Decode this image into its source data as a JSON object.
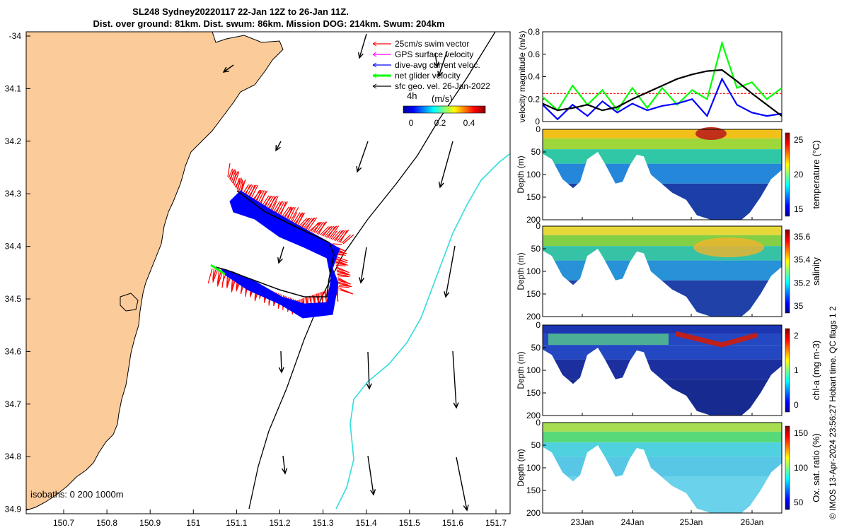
{
  "titles": {
    "line1": "SL248 Sydney20220117 22-Jan 12Z to 26-Jan 11Z.",
    "line2": "Dist. over ground: 81km. Dist. swum: 86km. Mission DOG: 214km. Swum: 204km"
  },
  "credit": "© IMOS 13-Apr-2024 23:56:27 Hobart time. QC flags 1  2",
  "map": {
    "xticks": [
      "150.7",
      "150.8",
      "150.9",
      "151",
      "151.1",
      "151.2",
      "151.3",
      "151.4",
      "151.5",
      "151.6",
      "151.7"
    ],
    "yticks": [
      "-34",
      "34.1",
      "34.2",
      "34.3",
      "34.4",
      "34.5",
      "34.6",
      "34.7",
      "34.8",
      "34.9"
    ],
    "legend": [
      {
        "label": "25cm/s swim vector",
        "color": "#ff0000"
      },
      {
        "label": "GPS surface velocity",
        "color": "#ff00ff"
      },
      {
        "label": "dive-avg current veloc.",
        "color": "#0000ff"
      },
      {
        "label": "net glider velocity",
        "color": "#00ff00"
      },
      {
        "label": "sfc geo. vel. 26-Jan-2022",
        "color": "#000000"
      }
    ],
    "colorbar": {
      "label": "(m/s)",
      "ticks": [
        "0",
        "0.2",
        "0.4"
      ],
      "note": "4h"
    },
    "isobaths_label": "isobaths: 0   200  1000m",
    "colors": {
      "land": "#fbcb99",
      "isobath200": "#000000",
      "isobath1000": "#33dddd",
      "swim": "#ff0000",
      "current": "#0000ff"
    }
  },
  "chart_data": [
    {
      "type": "line",
      "title": "",
      "ylabel": "velocity magnitude (m/s)",
      "ylim": [
        0,
        0.8
      ],
      "yticks": [
        "0",
        "0.2",
        "0.4",
        "0.6",
        "0.8"
      ],
      "x": [
        0,
        0.25,
        0.5,
        0.75,
        1,
        1.25,
        1.5,
        1.75,
        2,
        2.25,
        2.5,
        2.75,
        3,
        3.25,
        3.5,
        3.75,
        4
      ],
      "series": [
        {
          "name": "swim",
          "color": "#ff0000",
          "values": [
            0.25,
            0.25,
            0.25,
            0.25,
            0.25,
            0.25,
            0.25,
            0.25,
            0.25,
            0.25,
            0.25,
            0.25,
            0.25,
            0.25,
            0.25,
            0.25,
            0.25
          ]
        },
        {
          "name": "net glider",
          "color": "#00ff00",
          "values": [
            0.22,
            0.1,
            0.32,
            0.15,
            0.28,
            0.1,
            0.3,
            0.12,
            0.3,
            0.15,
            0.28,
            0.2,
            0.7,
            0.3,
            0.35,
            0.2,
            0.3
          ]
        },
        {
          "name": "dive-avg current",
          "color": "#0000ff",
          "values": [
            0.15,
            0.02,
            0.15,
            0.05,
            0.18,
            0.08,
            0.16,
            0.1,
            0.14,
            0.16,
            0.2,
            0.05,
            0.38,
            0.15,
            0.08,
            0.05,
            0.07
          ]
        },
        {
          "name": "surface geo",
          "color": "#000000",
          "values": [
            0.16,
            0.1,
            0.12,
            0.15,
            0.1,
            0.13,
            0.2,
            0.26,
            0.32,
            0.38,
            0.42,
            0.45,
            0.46,
            0.36,
            0.25,
            0.15,
            0.05
          ]
        }
      ]
    },
    {
      "type": "heatmap",
      "ylabel": "Depth (m)",
      "cbar_label": "temperature (°C)",
      "cbar_ticks": [
        "25",
        "20",
        "15"
      ],
      "ylim": [
        200,
        0
      ],
      "yticks": [
        "0",
        "50",
        "100",
        "150",
        "200"
      ]
    },
    {
      "type": "heatmap",
      "ylabel": "Depth (m)",
      "cbar_label": "salinity",
      "cbar_ticks": [
        "35.6",
        "35.4",
        "35.2",
        "35"
      ],
      "ylim": [
        200,
        0
      ],
      "yticks": [
        "0",
        "50",
        "100",
        "150",
        "200"
      ]
    },
    {
      "type": "heatmap",
      "ylabel": "Depth (m)",
      "cbar_label": "chl-a (mg m-3)",
      "cbar_ticks": [
        "2",
        "1",
        "0"
      ],
      "ylim": [
        200,
        0
      ],
      "yticks": [
        "0",
        "50",
        "100",
        "150",
        "200"
      ]
    },
    {
      "type": "heatmap",
      "ylabel": "Depth (m)",
      "cbar_label": "Ox. sat. ratio (%)",
      "cbar_ticks": [
        "150",
        "100",
        "50"
      ],
      "ylim": [
        200,
        0
      ],
      "yticks": [
        "0",
        "50",
        "100",
        "150",
        "200"
      ],
      "xticks": [
        "23Jan",
        "24Jan",
        "25Jan",
        "26Jan"
      ]
    }
  ]
}
